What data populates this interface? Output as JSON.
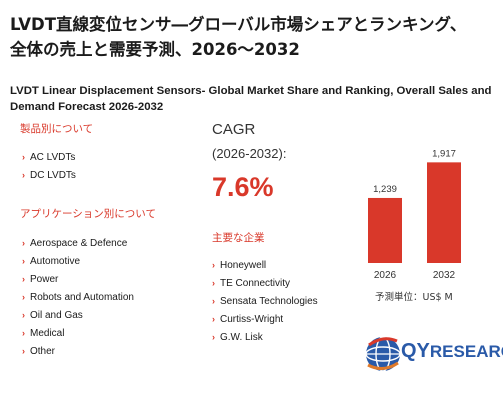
{
  "title_jp": "LVDT直線変位センサ―グローバル市場シェアとランキング、全体の売上と需要予測、2026～2032",
  "title_en": "LVDT Linear Displacement Sensors- Global Market Share and Ranking, Overall Sales and Demand Forecast 2026-2032",
  "products": {
    "heading": "製品別について",
    "items": [
      "AC LVDTs",
      "DC LVDTs"
    ]
  },
  "applications": {
    "heading": "アプリケーション別について",
    "items": [
      "Aerospace & Defence",
      "Automotive",
      "Power",
      "Robots and Automation",
      "Oil and Gas",
      "Medical",
      "Other"
    ]
  },
  "cagr": {
    "label": "CAGR",
    "period": "(2026-2032):",
    "value": "7.6%"
  },
  "companies": {
    "heading": "主要な企業",
    "items": [
      "Honeywell",
      "TE Connectivity",
      "Sensata Technologies",
      "Curtiss-Wright",
      "G.W. Lisk"
    ]
  },
  "chart_data": {
    "type": "bar",
    "categories": [
      "2026",
      "2032"
    ],
    "values": [
      1239,
      1917
    ],
    "value_labels": [
      "1,239",
      "1,917"
    ],
    "unit_note": "予測単位：US$ M",
    "ylim": [
      0,
      2000
    ],
    "bar_color": "#d9382a"
  },
  "logo": {
    "prefix": "QY",
    "suffix": "RESEARCH",
    "brand_color": "#2a5aa8"
  },
  "bullet_glyph": "›"
}
